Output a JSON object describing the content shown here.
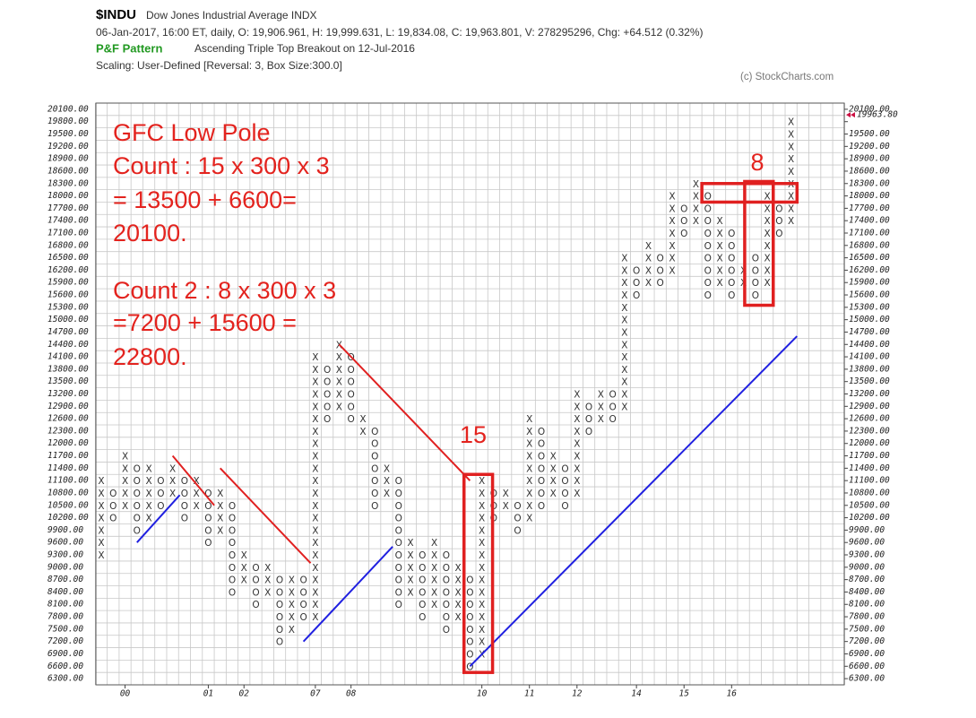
{
  "chart_data": {
    "type": "pnf",
    "title": "$INDU",
    "subtitle": "Dow Jones Industrial Average  INDX",
    "info": "06-Jan-2017, 16:00 ET, daily, O: 19,906.961, H: 19,999.631, L: 19,834.08, C: 19,963.801, V: 278295296, Chg: +64.512 (0.32%)",
    "pattern_label": "P&F Pattern",
    "pattern": "Ascending Triple Top Breakout on 12-Jul-2016",
    "scaling": "Scaling: User-Defined [Reversal: 3, Box Size:300.0]",
    "credit": "(c) StockCharts.com",
    "box_size": 300,
    "ylim": [
      6150,
      20250
    ],
    "grid": true,
    "color": "#333333",
    "current_color": "#cc1144",
    "last_price": {
      "value": 19963.8,
      "label": "19963.80"
    },
    "yticks": [
      {
        "value": 6300,
        "label": "6300.00"
      },
      {
        "value": 6600,
        "label": "6600.00"
      },
      {
        "value": 6900,
        "label": "6900.00"
      },
      {
        "value": 7200,
        "label": "7200.00"
      },
      {
        "value": 7500,
        "label": "7500.00"
      },
      {
        "value": 7800,
        "label": "7800.00"
      },
      {
        "value": 8100,
        "label": "8100.00"
      },
      {
        "value": 8400,
        "label": "8400.00"
      },
      {
        "value": 8700,
        "label": "8700.00"
      },
      {
        "value": 9000,
        "label": "9000.00"
      },
      {
        "value": 9300,
        "label": "9300.00"
      },
      {
        "value": 9600,
        "label": "9600.00"
      },
      {
        "value": 9900,
        "label": "9900.00"
      },
      {
        "value": 10200,
        "label": "10200.00"
      },
      {
        "value": 10500,
        "label": "10500.00"
      },
      {
        "value": 10800,
        "label": "10800.00"
      },
      {
        "value": 11100,
        "label": "11100.00"
      },
      {
        "value": 11400,
        "label": "11400.00"
      },
      {
        "value": 11700,
        "label": "11700.00"
      },
      {
        "value": 12000,
        "label": "12000.00"
      },
      {
        "value": 12300,
        "label": "12300.00"
      },
      {
        "value": 12600,
        "label": "12600.00"
      },
      {
        "value": 12900,
        "label": "12900.00"
      },
      {
        "value": 13200,
        "label": "13200.00"
      },
      {
        "value": 13500,
        "label": "13500.00"
      },
      {
        "value": 13800,
        "label": "13800.00"
      },
      {
        "value": 14100,
        "label": "14100.00"
      },
      {
        "value": 14400,
        "label": "14400.00"
      },
      {
        "value": 14700,
        "label": "14700.00"
      },
      {
        "value": 15000,
        "label": "15000.00"
      },
      {
        "value": 15300,
        "label": "15300.00"
      },
      {
        "value": 15600,
        "label": "15600.00"
      },
      {
        "value": 15900,
        "label": "15900.00"
      },
      {
        "value": 16200,
        "label": "16200.00"
      },
      {
        "value": 16500,
        "label": "16500.00"
      },
      {
        "value": 16800,
        "label": "16800.00"
      },
      {
        "value": 17100,
        "label": "17100.00"
      },
      {
        "value": 17400,
        "label": "17400.00"
      },
      {
        "value": 17700,
        "label": "17700.00"
      },
      {
        "value": 18000,
        "label": "18000.00"
      },
      {
        "value": 18300,
        "label": "18300.00"
      },
      {
        "value": 18600,
        "label": "18600.00"
      },
      {
        "value": 18900,
        "label": "18900.00"
      },
      {
        "value": 19200,
        "label": "19200.00"
      },
      {
        "value": 19500,
        "label": "19500.00"
      },
      {
        "value": 19800,
        "label": "19800.00"
      },
      {
        "value": 20100,
        "label": "20100.00"
      }
    ],
    "columns": [
      {
        "type": "X",
        "low": 9300,
        "high": 11100
      },
      {
        "type": "O",
        "low": 10200,
        "high": 10800
      },
      {
        "type": "X",
        "low": 10500,
        "high": 11700,
        "label": "00"
      },
      {
        "type": "O",
        "low": 9900,
        "high": 11400
      },
      {
        "type": "X",
        "low": 10200,
        "high": 11400
      },
      {
        "type": "O",
        "low": 10500,
        "high": 11100
      },
      {
        "type": "X",
        "low": 10800,
        "high": 11400
      },
      {
        "type": "O",
        "low": 10200,
        "high": 11100
      },
      {
        "type": "X",
        "low": 10500,
        "high": 11100
      },
      {
        "type": "O",
        "low": 9600,
        "high": 10800,
        "label": "01"
      },
      {
        "type": "X",
        "low": 9900,
        "high": 10800
      },
      {
        "type": "O",
        "low": 8400,
        "high": 10500
      },
      {
        "type": "X",
        "low": 8700,
        "high": 9300,
        "label": "02"
      },
      {
        "type": "O",
        "low": 8100,
        "high": 9000
      },
      {
        "type": "X",
        "low": 8400,
        "high": 9000
      },
      {
        "type": "O",
        "low": 7200,
        "high": 8700
      },
      {
        "type": "X",
        "low": 7500,
        "high": 8700
      },
      {
        "type": "O",
        "low": 7800,
        "high": 8700
      },
      {
        "type": "X",
        "low": 7800,
        "high": 14100,
        "label": "07"
      },
      {
        "type": "O",
        "low": 12600,
        "high": 13800
      },
      {
        "type": "X",
        "low": 12900,
        "high": 14400
      },
      {
        "type": "O",
        "low": 12600,
        "high": 14100,
        "label": "08"
      },
      {
        "type": "X",
        "low": 12300,
        "high": 12600
      },
      {
        "type": "O",
        "low": 10500,
        "high": 12300
      },
      {
        "type": "X",
        "low": 10800,
        "high": 11400
      },
      {
        "type": "O",
        "low": 8100,
        "high": 11100
      },
      {
        "type": "X",
        "low": 8400,
        "high": 9600
      },
      {
        "type": "O",
        "low": 7800,
        "high": 9300
      },
      {
        "type": "X",
        "low": 8100,
        "high": 9600
      },
      {
        "type": "O",
        "low": 7500,
        "high": 9300
      },
      {
        "type": "X",
        "low": 7800,
        "high": 9000
      },
      {
        "type": "O",
        "low": 6600,
        "high": 8700
      },
      {
        "type": "X",
        "low": 6900,
        "high": 11100,
        "label": "10"
      },
      {
        "type": "O",
        "low": 10200,
        "high": 10800
      },
      {
        "type": "X",
        "low": 10500,
        "high": 10800
      },
      {
        "type": "O",
        "low": 9900,
        "high": 10500
      },
      {
        "type": "X",
        "low": 10200,
        "high": 12600,
        "label": "11"
      },
      {
        "type": "O",
        "low": 10500,
        "high": 12300
      },
      {
        "type": "X",
        "low": 10800,
        "high": 11700
      },
      {
        "type": "O",
        "low": 10500,
        "high": 11400
      },
      {
        "type": "X",
        "low": 10800,
        "high": 13200,
        "label": "12"
      },
      {
        "type": "O",
        "low": 12300,
        "high": 12900
      },
      {
        "type": "X",
        "low": 12600,
        "high": 13200
      },
      {
        "type": "O",
        "low": 12600,
        "high": 13200
      },
      {
        "type": "X",
        "low": 12900,
        "high": 16500
      },
      {
        "type": "O",
        "low": 15600,
        "high": 16200,
        "label": "14"
      },
      {
        "type": "X",
        "low": 15900,
        "high": 16800
      },
      {
        "type": "O",
        "low": 15900,
        "high": 16500
      },
      {
        "type": "X",
        "low": 16200,
        "high": 18000
      },
      {
        "type": "O",
        "low": 17100,
        "high": 17700,
        "label": "15"
      },
      {
        "type": "X",
        "low": 17400,
        "high": 18300
      },
      {
        "type": "O",
        "low": 15600,
        "high": 18000
      },
      {
        "type": "X",
        "low": 15900,
        "high": 17400
      },
      {
        "type": "O",
        "low": 15600,
        "high": 17100,
        "label": "16"
      },
      {
        "type": "X",
        "low": 15900,
        "high": 16200
      },
      {
        "type": "O",
        "low": 15600,
        "high": 16500
      },
      {
        "type": "X",
        "low": 15900,
        "high": 18000
      },
      {
        "type": "O",
        "low": 17100,
        "high": 17700
      },
      {
        "type": "X",
        "low": 17400,
        "high": 19800
      }
    ],
    "trendlines": [
      {
        "color": "#e02020",
        "from": [
          6,
          11700
        ],
        "to": [
          9.5,
          10500
        ]
      },
      {
        "color": "#e02020",
        "from": [
          10,
          11400
        ],
        "to": [
          17.6,
          9100
        ]
      },
      {
        "color": "#e02020",
        "from": [
          20,
          14400
        ],
        "to": [
          31,
          11100
        ]
      },
      {
        "color": "#2020e0",
        "from": [
          3,
          9600
        ],
        "to": [
          6.6,
          10750
        ]
      },
      {
        "color": "#2020e0",
        "from": [
          17,
          7200
        ],
        "to": [
          24.5,
          9500
        ]
      },
      {
        "color": "#2020e0",
        "from": [
          31,
          6600
        ],
        "to": [
          58.5,
          14600
        ]
      }
    ],
    "boxes": [
      {
        "color": "#e02020",
        "cols": [
          30.5,
          32.9
        ],
        "values": [
          6450,
          11250
        ]
      },
      {
        "color": "#e02020",
        "cols": [
          54.1,
          56.5
        ],
        "values": [
          15350,
          18350
        ]
      },
      {
        "color": "#e02020",
        "cols": [
          50.5,
          58.5
        ],
        "values": [
          17850,
          18300
        ]
      }
    ],
    "annotations": [
      "GFC Low Pole",
      "Count : 15 x 300 x 3",
      "= 13500 + 6600=",
      "20100.",
      "Count 2 : 8 x 300 x 3",
      "=7200 + 15600 =",
      "22800."
    ],
    "box_labels": [
      "15",
      "8"
    ]
  }
}
